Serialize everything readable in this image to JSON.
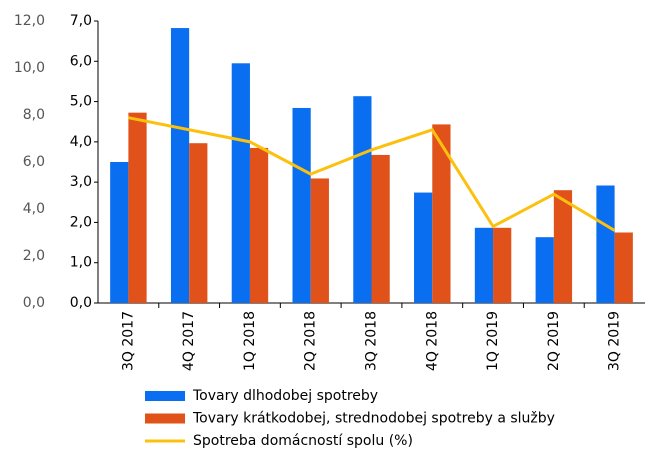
{
  "chart_data": {
    "type": "bar",
    "categories": [
      "3Q 2017",
      "4Q 2017",
      "1Q 2018",
      "2Q 2018",
      "3Q 2018",
      "4Q 2018",
      "1Q 2019",
      "2Q 2019",
      "3Q 2019"
    ],
    "series": [
      {
        "name": "Tovary dlhodobej spotreby",
        "color": "#0a6ef0",
        "type": "bar",
        "axis": "y2",
        "values": [
          6.0,
          11.7,
          10.2,
          8.3,
          8.8,
          4.7,
          3.2,
          2.8,
          5.0
        ]
      },
      {
        "name": "Tovary krátkodobej, strednodobej spotreby a služby",
        "color": "#e0521a",
        "type": "bar",
        "axis": "y2",
        "values": [
          8.1,
          6.8,
          6.6,
          5.3,
          6.3,
          7.6,
          3.2,
          4.8,
          3.0
        ]
      },
      {
        "name": "Spotreba domácností spolu (%)",
        "color": "#fcc00f",
        "type": "line",
        "values": [
          4.6,
          4.3,
          4.0,
          3.2,
          3.8,
          4.3,
          1.9,
          2.7,
          1.8
        ]
      }
    ],
    "ylim": [
      0,
      7
    ],
    "yticks": [
      {
        "value": 0,
        "label": "0,0"
      },
      {
        "value": 1,
        "label": "1,0"
      },
      {
        "value": 2,
        "label": "2,0"
      },
      {
        "value": 3,
        "label": "3,0"
      },
      {
        "value": 4,
        "label": "4,0"
      },
      {
        "value": 5,
        "label": "5,0"
      },
      {
        "value": 6,
        "label": "6,0"
      },
      {
        "value": 7,
        "label": "7,0"
      }
    ],
    "y2lim": [
      0,
      12
    ],
    "y2ticks": [
      {
        "value": 0,
        "label": "0,0"
      },
      {
        "value": 2,
        "label": "2,0"
      },
      {
        "value": 4,
        "label": "4,0"
      },
      {
        "value": 6,
        "label": "6,0"
      },
      {
        "value": 8,
        "label": "8,0"
      },
      {
        "value": 10,
        "label": "10,0"
      },
      {
        "value": 12,
        "label": "12,0"
      }
    ]
  }
}
